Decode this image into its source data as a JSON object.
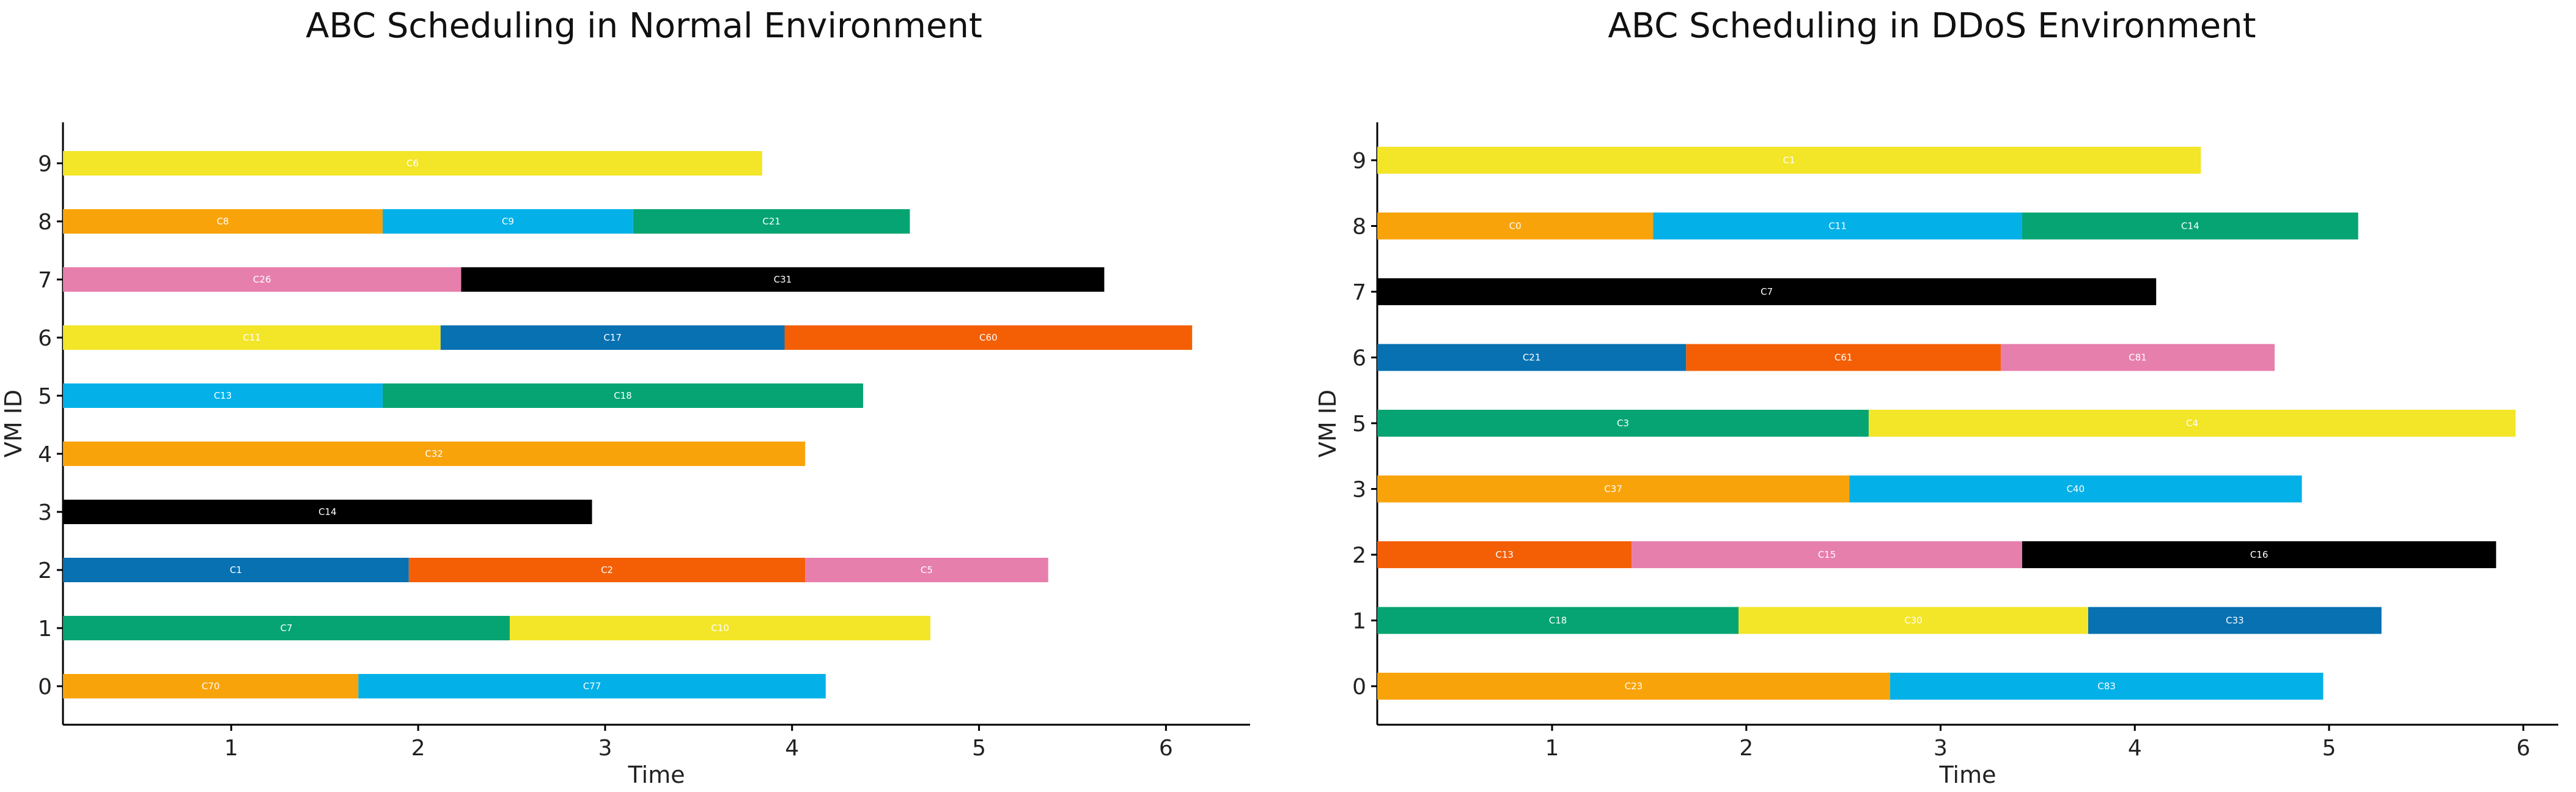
{
  "palette": {
    "orange": "#F9A30B",
    "cyan": "#03B1E8",
    "green": "#05A472",
    "pink": "#E77FAD",
    "black": "#000000",
    "yellow": "#F3E528",
    "blue": "#0771B2",
    "red_orange": "#F45F06"
  },
  "chart_data": [
    {
      "type": "bar",
      "orientation": "horizontal-stacked",
      "title": "ABC Scheduling in Normal Environment",
      "xlabel": "Time",
      "ylabel": "VM ID",
      "xlim": [
        0.1,
        6.45
      ],
      "xticks": [
        1,
        2,
        3,
        4,
        5,
        6
      ],
      "vms": [
        {
          "id": "9",
          "segments": [
            {
              "label": "C6",
              "start": 0.1,
              "end": 3.84,
              "color": "#F3E528"
            }
          ]
        },
        {
          "id": "8",
          "segments": [
            {
              "label": "C8",
              "start": 0.1,
              "end": 1.81,
              "color": "#F9A30B"
            },
            {
              "label": "C9",
              "start": 1.81,
              "end": 3.15,
              "color": "#03B1E8"
            },
            {
              "label": "C21",
              "start": 3.15,
              "end": 4.63,
              "color": "#05A472"
            }
          ]
        },
        {
          "id": "7",
          "segments": [
            {
              "label": "C26",
              "start": 0.1,
              "end": 2.23,
              "color": "#E77FAD"
            },
            {
              "label": "C31",
              "start": 2.23,
              "end": 5.67,
              "color": "#000000"
            }
          ]
        },
        {
          "id": "6",
          "segments": [
            {
              "label": "C11",
              "start": 0.1,
              "end": 2.12,
              "color": "#F3E528"
            },
            {
              "label": "C17",
              "start": 2.12,
              "end": 3.96,
              "color": "#0771B2"
            },
            {
              "label": "C60",
              "start": 3.96,
              "end": 6.14,
              "color": "#F45F06"
            }
          ]
        },
        {
          "id": "5",
          "segments": [
            {
              "label": "C13",
              "start": 0.1,
              "end": 1.81,
              "color": "#03B1E8"
            },
            {
              "label": "C18",
              "start": 1.81,
              "end": 4.38,
              "color": "#05A472"
            }
          ]
        },
        {
          "id": "4",
          "segments": [
            {
              "label": "C32",
              "start": 0.1,
              "end": 4.07,
              "color": "#F9A30B"
            }
          ]
        },
        {
          "id": "3",
          "segments": [
            {
              "label": "C14",
              "start": 0.1,
              "end": 2.93,
              "color": "#000000"
            }
          ]
        },
        {
          "id": "2",
          "segments": [
            {
              "label": "C1",
              "start": 0.1,
              "end": 1.95,
              "color": "#0771B2"
            },
            {
              "label": "C2",
              "start": 1.95,
              "end": 4.07,
              "color": "#F45F06"
            },
            {
              "label": "C5",
              "start": 4.07,
              "end": 5.37,
              "color": "#E77FAD"
            }
          ]
        },
        {
          "id": "1",
          "segments": [
            {
              "label": "C7",
              "start": 0.1,
              "end": 2.49,
              "color": "#05A472"
            },
            {
              "label": "C10",
              "start": 2.49,
              "end": 4.74,
              "color": "#F3E528"
            }
          ]
        },
        {
          "id": "0",
          "segments": [
            {
              "label": "C70",
              "start": 0.1,
              "end": 1.68,
              "color": "#F9A30B"
            },
            {
              "label": "C77",
              "start": 1.68,
              "end": 4.18,
              "color": "#03B1E8"
            }
          ]
        }
      ]
    },
    {
      "type": "bar",
      "orientation": "horizontal-stacked",
      "title": "ABC Scheduling in DDoS Environment",
      "xlabel": "Time",
      "ylabel": "VM ID",
      "xlim": [
        0.1,
        6.18
      ],
      "xticks": [
        1,
        2,
        3,
        4,
        5,
        6
      ],
      "vms": [
        {
          "id": "9",
          "segments": [
            {
              "label": "C1",
              "start": 0.1,
              "end": 4.34,
              "color": "#F3E528"
            }
          ]
        },
        {
          "id": "8",
          "segments": [
            {
              "label": "C0",
              "start": 0.1,
              "end": 1.52,
              "color": "#F9A30B"
            },
            {
              "label": "C11",
              "start": 1.52,
              "end": 3.42,
              "color": "#03B1E8"
            },
            {
              "label": "C14",
              "start": 3.42,
              "end": 5.15,
              "color": "#05A472"
            }
          ]
        },
        {
          "id": "7",
          "segments": [
            {
              "label": "C7",
              "start": 0.1,
              "end": 4.11,
              "color": "#000000"
            }
          ]
        },
        {
          "id": "6",
          "segments": [
            {
              "label": "C21",
              "start": 0.1,
              "end": 1.69,
              "color": "#0771B2"
            },
            {
              "label": "C61",
              "start": 1.69,
              "end": 3.31,
              "color": "#F45F06"
            },
            {
              "label": "C81",
              "start": 3.31,
              "end": 4.72,
              "color": "#E77FAD"
            }
          ]
        },
        {
          "id": "5",
          "segments": [
            {
              "label": "C3",
              "start": 0.1,
              "end": 2.63,
              "color": "#05A472"
            },
            {
              "label": "C4",
              "start": 2.63,
              "end": 5.96,
              "color": "#F3E528"
            }
          ]
        },
        {
          "id": "3",
          "segments": [
            {
              "label": "C37",
              "start": 0.1,
              "end": 2.53,
              "color": "#F9A30B"
            },
            {
              "label": "C40",
              "start": 2.53,
              "end": 4.86,
              "color": "#03B1E8"
            }
          ]
        },
        {
          "id": "2",
          "segments": [
            {
              "label": "C13",
              "start": 0.1,
              "end": 1.41,
              "color": "#F45F06"
            },
            {
              "label": "C15",
              "start": 1.41,
              "end": 3.42,
              "color": "#E77FAD"
            },
            {
              "label": "C16",
              "start": 3.42,
              "end": 5.86,
              "color": "#000000"
            }
          ]
        },
        {
          "id": "1",
          "segments": [
            {
              "label": "C18",
              "start": 0.1,
              "end": 1.96,
              "color": "#05A472"
            },
            {
              "label": "C30",
              "start": 1.96,
              "end": 3.76,
              "color": "#F3E528"
            },
            {
              "label": "C33",
              "start": 3.76,
              "end": 5.27,
              "color": "#0771B2"
            }
          ]
        },
        {
          "id": "0",
          "segments": [
            {
              "label": "C23",
              "start": 0.1,
              "end": 2.74,
              "color": "#F9A30B"
            },
            {
              "label": "C83",
              "start": 2.74,
              "end": 4.97,
              "color": "#03B1E8"
            }
          ]
        }
      ]
    }
  ]
}
